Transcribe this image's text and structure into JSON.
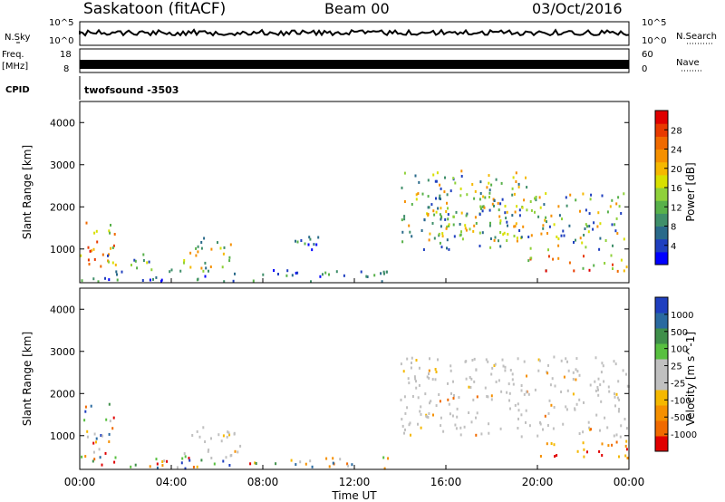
{
  "header": {
    "station": "Saskatoon (fitACF)",
    "beam": "Beam 00",
    "date": "03/Oct/2016"
  },
  "top_panels": {
    "nsky_label": "N.Sky",
    "nsky_ticks": [
      "10^5",
      "10^0"
    ],
    "nsearch_label": "N.Search",
    "nsearch_ticks": [
      "10^5",
      "10^0"
    ],
    "freq_label": "Freq.",
    "freq_unit": "[MHz]",
    "freq_ticks": [
      "18",
      "8"
    ],
    "nave_label": "Nave",
    "nave_ticks": [
      "60",
      "0"
    ],
    "cpid_label": "CPID",
    "cpid_value": "twofsound  -3503"
  },
  "chart_data": [
    {
      "type": "heatmap",
      "panel": "power",
      "ylabel": "Slant Range [km]",
      "ylim": [
        200,
        4500
      ],
      "yticks": [
        "1000",
        "2000",
        "3000",
        "4000"
      ],
      "colorbar": {
        "label": "Power [dB]",
        "ticks": [
          "4",
          "8",
          "12",
          "16",
          "20",
          "24",
          "28"
        ],
        "colors": [
          "#0000ff",
          "#1f3fbf",
          "#2a6a8a",
          "#3f8f6a",
          "#58b14a",
          "#8fd13a",
          "#d8e000",
          "#f5b800",
          "#f59000",
          "#f06a00",
          "#e83a00",
          "#e00000"
        ]
      },
      "echo_regions": [
        {
          "t": [
            0.0,
            1.5
          ],
          "r": [
            500,
            1800
          ],
          "level": "high"
        },
        {
          "t": [
            1.0,
            3.2
          ],
          "r": [
            450,
            900
          ],
          "level": "mid"
        },
        {
          "t": [
            4.5,
            7.0
          ],
          "r": [
            500,
            1300
          ],
          "level": "mid"
        },
        {
          "t": [
            8.8,
            10.5
          ],
          "r": [
            1000,
            1500
          ],
          "level": "low"
        },
        {
          "t": [
            0.0,
            13.5
          ],
          "r": [
            250,
            550
          ],
          "level": "low"
        },
        {
          "t": [
            14.0,
            19.5
          ],
          "r": [
            1200,
            2900
          ],
          "level": "mid"
        },
        {
          "t": [
            15.0,
            24.0
          ],
          "r": [
            1000,
            2400
          ],
          "level": "mid"
        },
        {
          "t": [
            19.5,
            24.0
          ],
          "r": [
            500,
            900
          ],
          "level": "high"
        }
      ]
    },
    {
      "type": "heatmap",
      "panel": "velocity",
      "ylabel": "Slant Range [km]",
      "xlabel": "Time UT",
      "xticks": [
        "00:00",
        "04:00",
        "08:00",
        "12:00",
        "16:00",
        "20:00",
        "00:00"
      ],
      "xlim": [
        0,
        24
      ],
      "ylim": [
        200,
        4500
      ],
      "yticks": [
        "1000",
        "2000",
        "3000",
        "4000"
      ],
      "colorbar": {
        "label": "Velocity [m s^-1]",
        "ticks": [
          "1000",
          "500",
          "100",
          "25",
          "-25",
          "-100",
          "-500",
          "-1000"
        ],
        "colors": [
          "#1f3fbf",
          "#2a6aa0",
          "#3f8f4a",
          "#58c040",
          "#c0c0c0",
          "#c0c0c0",
          "#f5b800",
          "#f59000",
          "#f06a00",
          "#e00000"
        ]
      },
      "echo_regions": [
        {
          "t": [
            0.0,
            1.5
          ],
          "r": [
            500,
            1800
          ],
          "level": "mixed"
        },
        {
          "t": [
            4.5,
            7.0
          ],
          "r": [
            500,
            1300
          ],
          "level": "ground"
        },
        {
          "t": [
            0.0,
            13.5
          ],
          "r": [
            250,
            550
          ],
          "level": "mixed"
        },
        {
          "t": [
            14.0,
            24.0
          ],
          "r": [
            1000,
            2900
          ],
          "level": "ground"
        },
        {
          "t": [
            19.5,
            24.0
          ],
          "r": [
            500,
            900
          ],
          "level": "negative"
        }
      ]
    }
  ]
}
